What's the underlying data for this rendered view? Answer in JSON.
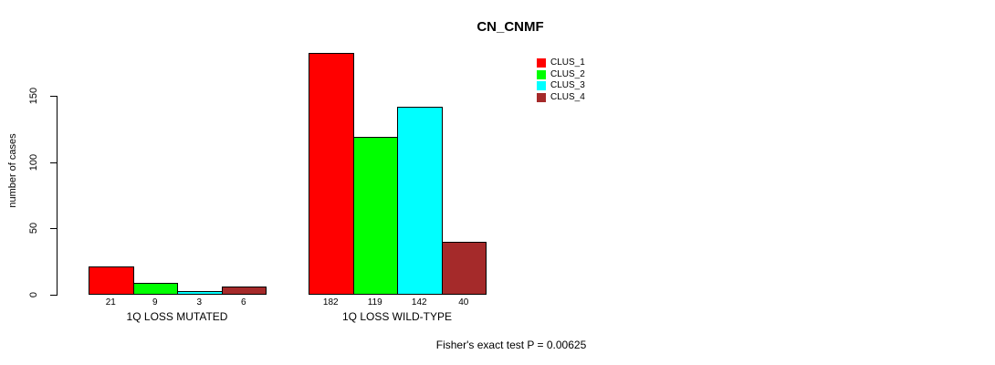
{
  "title": "CN_CNMF",
  "footer": "Fisher's exact test P = 0.00625",
  "y_axis": {
    "label": "number of cases",
    "ticks": [
      0,
      50,
      100,
      150
    ]
  },
  "legend": {
    "items": [
      {
        "label": "CLUS_1",
        "color": "#FF0000"
      },
      {
        "label": "CLUS_2",
        "color": "#00FF00"
      },
      {
        "label": "CLUS_3",
        "color": "#00FFFF"
      },
      {
        "label": "CLUS_4",
        "color": "#A52A2A"
      }
    ]
  },
  "chart_data": {
    "type": "bar",
    "title": "CN_CNMF",
    "xlabel": "",
    "ylabel": "number of cases",
    "categories": [
      "1Q LOSS MUTATED",
      "1Q LOSS WILD-TYPE"
    ],
    "series": [
      {
        "name": "CLUS_1",
        "color": "#FF0000",
        "values": [
          21,
          182
        ]
      },
      {
        "name": "CLUS_2",
        "color": "#00FF00",
        "values": [
          9,
          119
        ]
      },
      {
        "name": "CLUS_3",
        "color": "#00FFFF",
        "values": [
          3,
          142
        ]
      },
      {
        "name": "CLUS_4",
        "color": "#A52A2A",
        "values": [
          6,
          40
        ]
      }
    ],
    "bar_value_labels": [
      [
        21,
        9,
        3,
        6
      ],
      [
        182,
        119,
        142,
        40
      ]
    ],
    "ylim": [
      0,
      190
    ],
    "y_ticks": [
      0,
      50,
      100,
      150
    ],
    "grid": false,
    "legend_position": "top-right-inside",
    "annotation": "Fisher's exact test P = 0.00625"
  }
}
